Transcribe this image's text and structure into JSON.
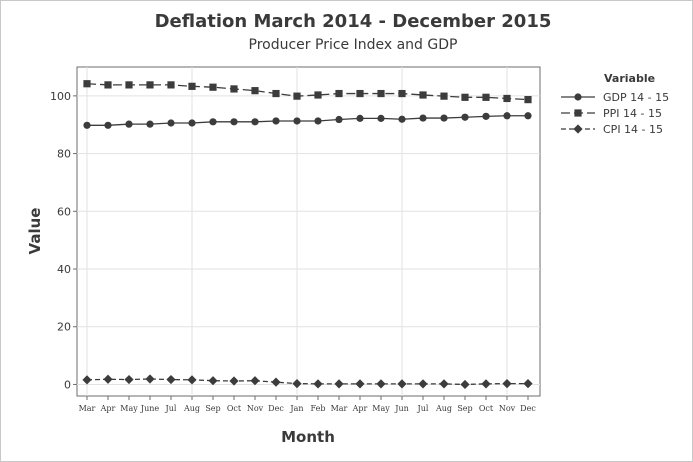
{
  "chart_data": {
    "type": "line",
    "title": "Deflation March 2014 - December 2015",
    "subtitle": "Producer Price Index and GDP",
    "xlabel": "Month",
    "ylabel": "Value",
    "ylim": [
      -4,
      110
    ],
    "yticks": [
      0,
      20,
      40,
      60,
      80,
      100
    ],
    "grid": true,
    "legend_title": "Variable",
    "legend_position": "right",
    "categories": [
      "Mar",
      "Apr",
      "May",
      "June",
      "Jul",
      "Aug",
      "Sep",
      "Oct",
      "Nov",
      "Dec",
      "Jan",
      "Feb",
      "Mar",
      "Apr",
      "May",
      "Jun",
      "Jul",
      "Aug",
      "Sep",
      "Oct",
      "Nov",
      "Dec"
    ],
    "series": [
      {
        "name": "GDP 14 - 15",
        "marker": "circle",
        "dash": "solid",
        "color": "#3c3c3c",
        "values": [
          89.8,
          89.8,
          90.2,
          90.2,
          90.6,
          90.6,
          91.0,
          91.0,
          91.0,
          91.3,
          91.3,
          91.3,
          91.8,
          92.2,
          92.2,
          91.9,
          92.3,
          92.3,
          92.6,
          92.9,
          93.1,
          93.1
        ]
      },
      {
        "name": "PPI 14 - 15",
        "marker": "square",
        "dash": "longdash",
        "color": "#3c3c3c",
        "values": [
          104.2,
          103.8,
          103.8,
          103.8,
          103.8,
          103.3,
          103.0,
          102.4,
          101.8,
          100.8,
          99.9,
          100.3,
          100.8,
          100.8,
          100.8,
          100.8,
          100.3,
          99.9,
          99.5,
          99.5,
          99.1,
          98.7
        ]
      },
      {
        "name": "CPI 14 - 15",
        "marker": "diamond",
        "dash": "dashed",
        "color": "#3c3c3c",
        "values": [
          1.6,
          1.8,
          1.7,
          1.9,
          1.7,
          1.6,
          1.3,
          1.2,
          1.3,
          0.8,
          0.3,
          0.2,
          0.2,
          0.2,
          0.2,
          0.2,
          0.2,
          0.2,
          0.0,
          0.2,
          0.3,
          0.3
        ]
      }
    ]
  }
}
